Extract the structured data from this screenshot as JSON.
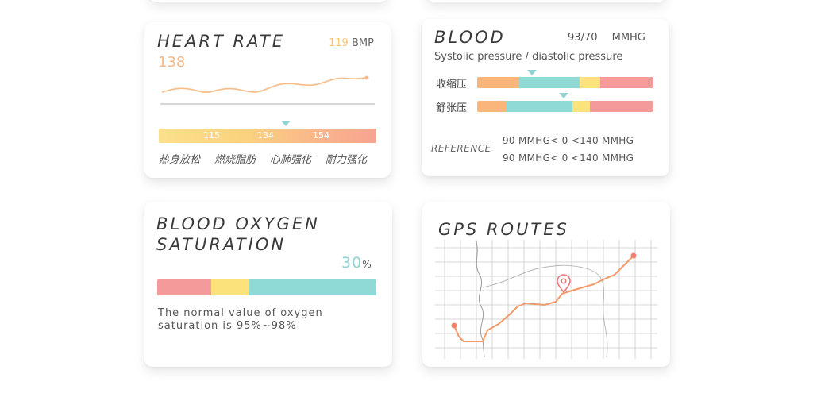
{
  "heart_rate": {
    "title": "HEART RATE",
    "current_value": "119",
    "unit": "BMP",
    "big_value": "138",
    "thresholds": [
      "115",
      "134",
      "154"
    ],
    "zones": [
      "热身放松",
      "燃烧脂肪",
      "心肺强化",
      "耐力强化"
    ]
  },
  "blood": {
    "title": "BLOOD",
    "reading": "93/70 MMHG",
    "subtitle": "Systolic pressure / diastolic pressure",
    "systolic_label": "收缩压",
    "diastolic_label": "舒张压",
    "reference_label": "REFERENCE",
    "reference_line1": "90 MMHG< 0 <140 MMHG",
    "reference_line2": "90 MMHG< 0 <140 MMHG",
    "colors": {
      "orange": "#f9b57a",
      "teal": "#8fd9d6",
      "yellow": "#fbe27a",
      "pink": "#f59a9a"
    }
  },
  "oxygen": {
    "title_line1": "BLOOD OXYGEN",
    "title_line2": "SATURATION",
    "value": "30",
    "unit": "%",
    "note": "The normal value of oxygen saturation is 95%~98%"
  },
  "gps": {
    "title": "GPS ROUTES",
    "route_color": "#f39a6a",
    "icons": [
      "location-pin-icon"
    ]
  }
}
